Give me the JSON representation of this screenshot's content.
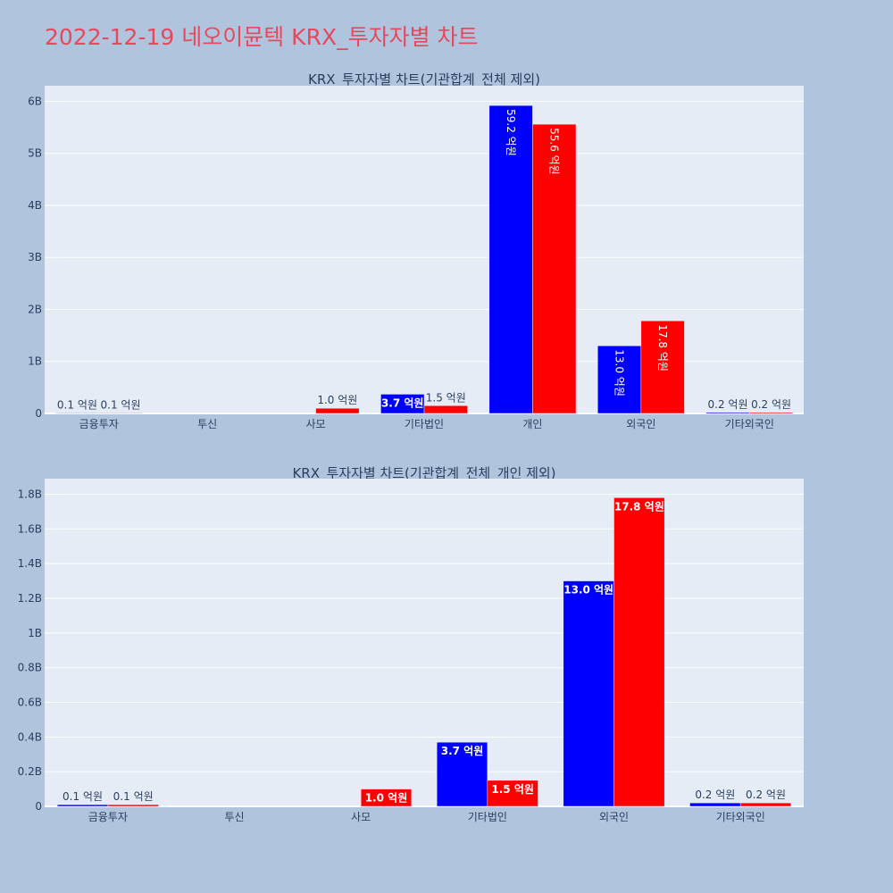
{
  "page_title": "2022-12-19 네오이뮨텍 KRX_투자자별 차트",
  "colors": {
    "background": "#b0c4de",
    "plot_bg": "#e5ecf6",
    "title": "#e8485c",
    "text": "#2a3f5f",
    "series_a": "#0000ff",
    "series_b": "#ff0000"
  },
  "chart_data": [
    {
      "type": "bar",
      "title": "KRX_투자자별 차트(기관합계_전체 제외)",
      "categories": [
        "금융투자",
        "투신",
        "사모",
        "기타법인",
        "개인",
        "외국인",
        "기타외국인"
      ],
      "series": [
        {
          "color": "#0000ff",
          "values": [
            10000000,
            0,
            0,
            370000000,
            5920000000,
            1300000000,
            20000000
          ],
          "labels": [
            "0.1 억원",
            "",
            "",
            "3.7 억원",
            "59.2 억원",
            "13.0 억원",
            "0.2 억원"
          ]
        },
        {
          "color": "#ff0000",
          "values": [
            10000000,
            0,
            100000000,
            150000000,
            5560000000,
            1780000000,
            20000000
          ],
          "labels": [
            "0.1 억원",
            "",
            "1.0 억원",
            "1.5 억원",
            "55.6 억원",
            "17.8 억원",
            "0.2 억원"
          ]
        }
      ],
      "ylim": [
        0,
        6300000000
      ],
      "yticks": [
        0,
        1000000000,
        2000000000,
        3000000000,
        4000000000,
        5000000000,
        6000000000
      ],
      "ytick_labels": [
        "0",
        "1B",
        "2B",
        "3B",
        "4B",
        "5B",
        "6B"
      ],
      "grid": true
    },
    {
      "type": "bar",
      "title": "KRX_투자자별 차트(기관합계_전체_개인 제외)",
      "categories": [
        "금융투자",
        "투신",
        "사모",
        "기타법인",
        "외국인",
        "기타외국인"
      ],
      "series": [
        {
          "color": "#0000ff",
          "values": [
            10000000,
            0,
            0,
            370000000,
            1300000000,
            20000000
          ],
          "labels": [
            "0.1 억원",
            "",
            "",
            "3.7 억원",
            "13.0 억원",
            "0.2 억원"
          ]
        },
        {
          "color": "#ff0000",
          "values": [
            10000000,
            0,
            100000000,
            150000000,
            1780000000,
            20000000
          ],
          "labels": [
            "0.1 억원",
            "",
            "1.0 억원",
            "1.5 억원",
            "17.8 억원",
            "0.2 억원"
          ]
        }
      ],
      "ylim": [
        0,
        1890000000
      ],
      "yticks": [
        0,
        200000000,
        400000000,
        600000000,
        800000000,
        1000000000,
        1200000000,
        1400000000,
        1600000000,
        1800000000
      ],
      "ytick_labels": [
        "0",
        "0.2B",
        "0.4B",
        "0.6B",
        "0.8B",
        "1B",
        "1.2B",
        "1.4B",
        "1.6B",
        "1.8B"
      ],
      "grid": true
    }
  ]
}
